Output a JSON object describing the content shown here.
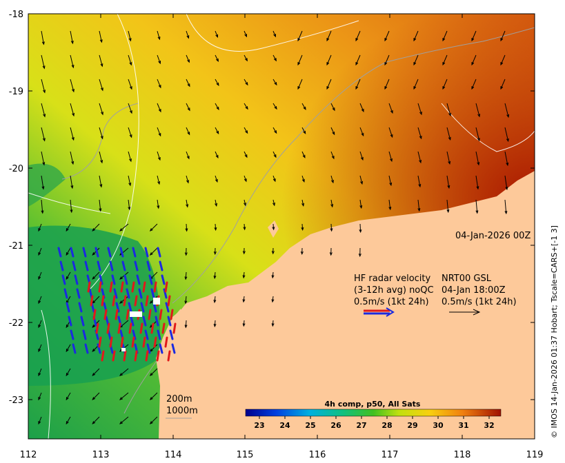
{
  "map": {
    "lon_ticks": [
      "112",
      "113",
      "114",
      "115",
      "116",
      "117",
      "118",
      "119"
    ],
    "lat_ticks": [
      "-18",
      "-19",
      "-20",
      "-21",
      "-22",
      "-23"
    ],
    "lon_range": [
      112,
      119
    ],
    "lat_range": [
      -23.5,
      -18
    ],
    "land_color": "#fdc99a",
    "sst_colors": {
      "cool": "#1e9e3c",
      "mid": "#c8d818",
      "warm": "#f0a818",
      "hot": "#b01800"
    }
  },
  "timestamp": "04-Jan-2026 00Z",
  "legend": {
    "hf_line1": "HF radar velocity",
    "hf_line2": "(3-12h avg) noQC",
    "hf_line3": "0.5m/s (1kt 24h)",
    "nrt_line1": "NRT00 GSL",
    "nrt_line2": "04-Jan 18:00Z",
    "nrt_line3": "0.5m/s (1kt 24h)",
    "radar_colors": [
      "#1a2ae0",
      "#e01a1a"
    ],
    "nrt_color": "#000000"
  },
  "isobaths": {
    "line1": "200m",
    "line2": "1000m"
  },
  "colorbar": {
    "title": "4h comp, p50, All Sats",
    "ticks": [
      "23",
      "24",
      "25",
      "26",
      "27",
      "28",
      "29",
      "30",
      "31",
      "32"
    ],
    "range": [
      22.5,
      32.5
    ]
  },
  "credit": "© IMOS 14-Jan-2026 01:37 Hobart; Tscale=CARS+[-1 3]"
}
